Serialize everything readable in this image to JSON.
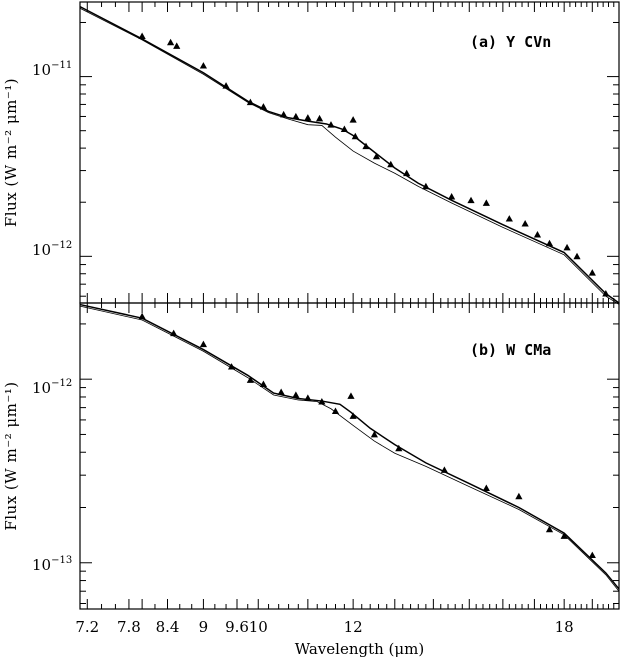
{
  "chart_data": [
    {
      "type": "scatter",
      "title": "",
      "panel_label": "(a) Y CVn",
      "xlabel": "",
      "ylabel": "Flux (W m⁻² μm⁻¹)",
      "x_scale": "log",
      "y_scale": "log",
      "xlim": [
        7.1,
        20.0
      ],
      "ylim": [
        5.5e-13,
        2.6e-11
      ],
      "y_ticks": [
        {
          "base": "10",
          "exp": "−11"
        },
        {
          "base": "10",
          "exp": "−12"
        }
      ],
      "observed_points": {
        "x": [
          8.0,
          8.45,
          8.55,
          9.0,
          9.4,
          9.85,
          10.1,
          10.5,
          10.75,
          11.0,
          11.25,
          11.5,
          11.8,
          12.0,
          12.05,
          12.3,
          12.55,
          12.9,
          13.3,
          13.8,
          14.5,
          15.05,
          15.5,
          16.2,
          16.7,
          17.1,
          17.5,
          18.1,
          18.45,
          19.0,
          19.5
        ],
        "y": [
          1.68e-11,
          1.55e-11,
          1.48e-11,
          1.15e-11,
          8.9e-12,
          7.2e-12,
          6.8e-12,
          6.15e-12,
          6e-12,
          5.9e-12,
          5.85e-12,
          5.4e-12,
          5.1e-12,
          5.75e-12,
          4.65e-12,
          4.1e-12,
          3.6e-12,
          3.25e-12,
          2.9e-12,
          2.45e-12,
          2.15e-12,
          2.05e-12,
          1.98e-12,
          1.62e-12,
          1.52e-12,
          1.32e-12,
          1.18e-12,
          1.12e-12,
          1e-12,
          8.1e-13,
          6.2e-13
        ]
      },
      "model_with_feature": {
        "x": [
          7.1,
          8.0,
          9.0,
          9.8,
          10.2,
          10.6,
          11.0,
          11.4,
          11.75,
          12.0,
          12.5,
          13.0,
          13.6,
          14.5,
          16.0,
          18.0,
          19.5,
          20.0
        ],
        "y": [
          2.45e-11,
          1.62e-11,
          1.05e-11,
          7.3e-12,
          6.4e-12,
          5.9e-12,
          5.65e-12,
          5.45e-12,
          5.1e-12,
          4.7e-12,
          3.8e-12,
          3.1e-12,
          2.55e-12,
          2.05e-12,
          1.5e-12,
          1.05e-12,
          6.2e-13,
          5.5e-13
        ]
      },
      "model_continuum": {
        "x": [
          7.1,
          8.0,
          9.0,
          9.8,
          10.2,
          10.6,
          11.0,
          11.3,
          11.6,
          12.0,
          12.5,
          13.0,
          13.6,
          14.5,
          16.0,
          18.0,
          19.5,
          20.0
        ],
        "y": [
          2.4e-11,
          1.6e-11,
          1.03e-11,
          7.2e-12,
          6.3e-12,
          5.8e-12,
          5.4e-12,
          5.35e-12,
          4.6e-12,
          3.85e-12,
          3.3e-12,
          2.9e-12,
          2.45e-12,
          1.98e-12,
          1.45e-12,
          1.02e-12,
          6e-13,
          5.4e-13
        ]
      }
    },
    {
      "type": "scatter",
      "title": "",
      "panel_label": "(b) W CMa",
      "xlabel": "Wavelength (μm)",
      "ylabel": "Flux (W m⁻² μm⁻¹)",
      "x_scale": "log",
      "y_scale": "log",
      "xlim": [
        7.1,
        20.0
      ],
      "ylim": [
        5.6e-14,
        2.6e-12
      ],
      "x_ticks": [
        "7.2",
        "7.8",
        "8.4",
        "9",
        "9.6",
        "10",
        "12",
        "18"
      ],
      "y_ticks": [
        {
          "base": "10",
          "exp": "−12"
        },
        {
          "base": "10",
          "exp": "−13"
        }
      ],
      "observed_points": {
        "x": [
          8.0,
          8.5,
          9.0,
          9.5,
          9.85,
          10.1,
          10.45,
          10.75,
          11.0,
          11.3,
          11.6,
          11.95,
          12.0,
          12.5,
          13.1,
          14.3,
          15.5,
          16.5,
          17.5,
          18.0,
          19.0
        ],
        "y": [
          2.2e-12,
          1.78e-12,
          1.55e-12,
          1.17e-12,
          9.9e-13,
          9.4e-13,
          8.5e-13,
          8.2e-13,
          7.9e-13,
          7.55e-13,
          6.7e-13,
          8.1e-13,
          6.3e-13,
          5e-13,
          4.2e-13,
          3.2e-13,
          2.55e-13,
          2.3e-13,
          1.52e-13,
          1.4e-13,
          1.1e-13
        ]
      },
      "model_with_feature": {
        "x": [
          7.1,
          8.0,
          9.0,
          9.8,
          10.3,
          10.8,
          11.3,
          11.7,
          11.95,
          12.4,
          13.0,
          13.8,
          15.0,
          16.5,
          18.0,
          19.5,
          20.0
        ],
        "y": [
          2.55e-12,
          2.15e-12,
          1.45e-12,
          1.05e-12,
          8.4e-13,
          7.85e-13,
          7.6e-13,
          7.3e-13,
          6.6e-13,
          5.4e-13,
          4.4e-13,
          3.5e-13,
          2.7e-13,
          2e-13,
          1.45e-13,
          8.8e-14,
          7.2e-14
        ]
      },
      "model_continuum": {
        "x": [
          7.1,
          8.0,
          9.0,
          9.8,
          10.3,
          10.8,
          11.2,
          11.5,
          12.0,
          12.5,
          13.0,
          13.8,
          15.0,
          16.5,
          18.0,
          19.5,
          20.0
        ],
        "y": [
          2.5e-12,
          2.1e-12,
          1.42e-12,
          1.02e-12,
          8.2e-13,
          7.7e-13,
          7.55e-13,
          6.9e-13,
          5.6e-13,
          4.6e-13,
          3.95e-13,
          3.35e-13,
          2.6e-13,
          1.95e-13,
          1.42e-13,
          8.6e-14,
          7e-14
        ]
      }
    }
  ]
}
